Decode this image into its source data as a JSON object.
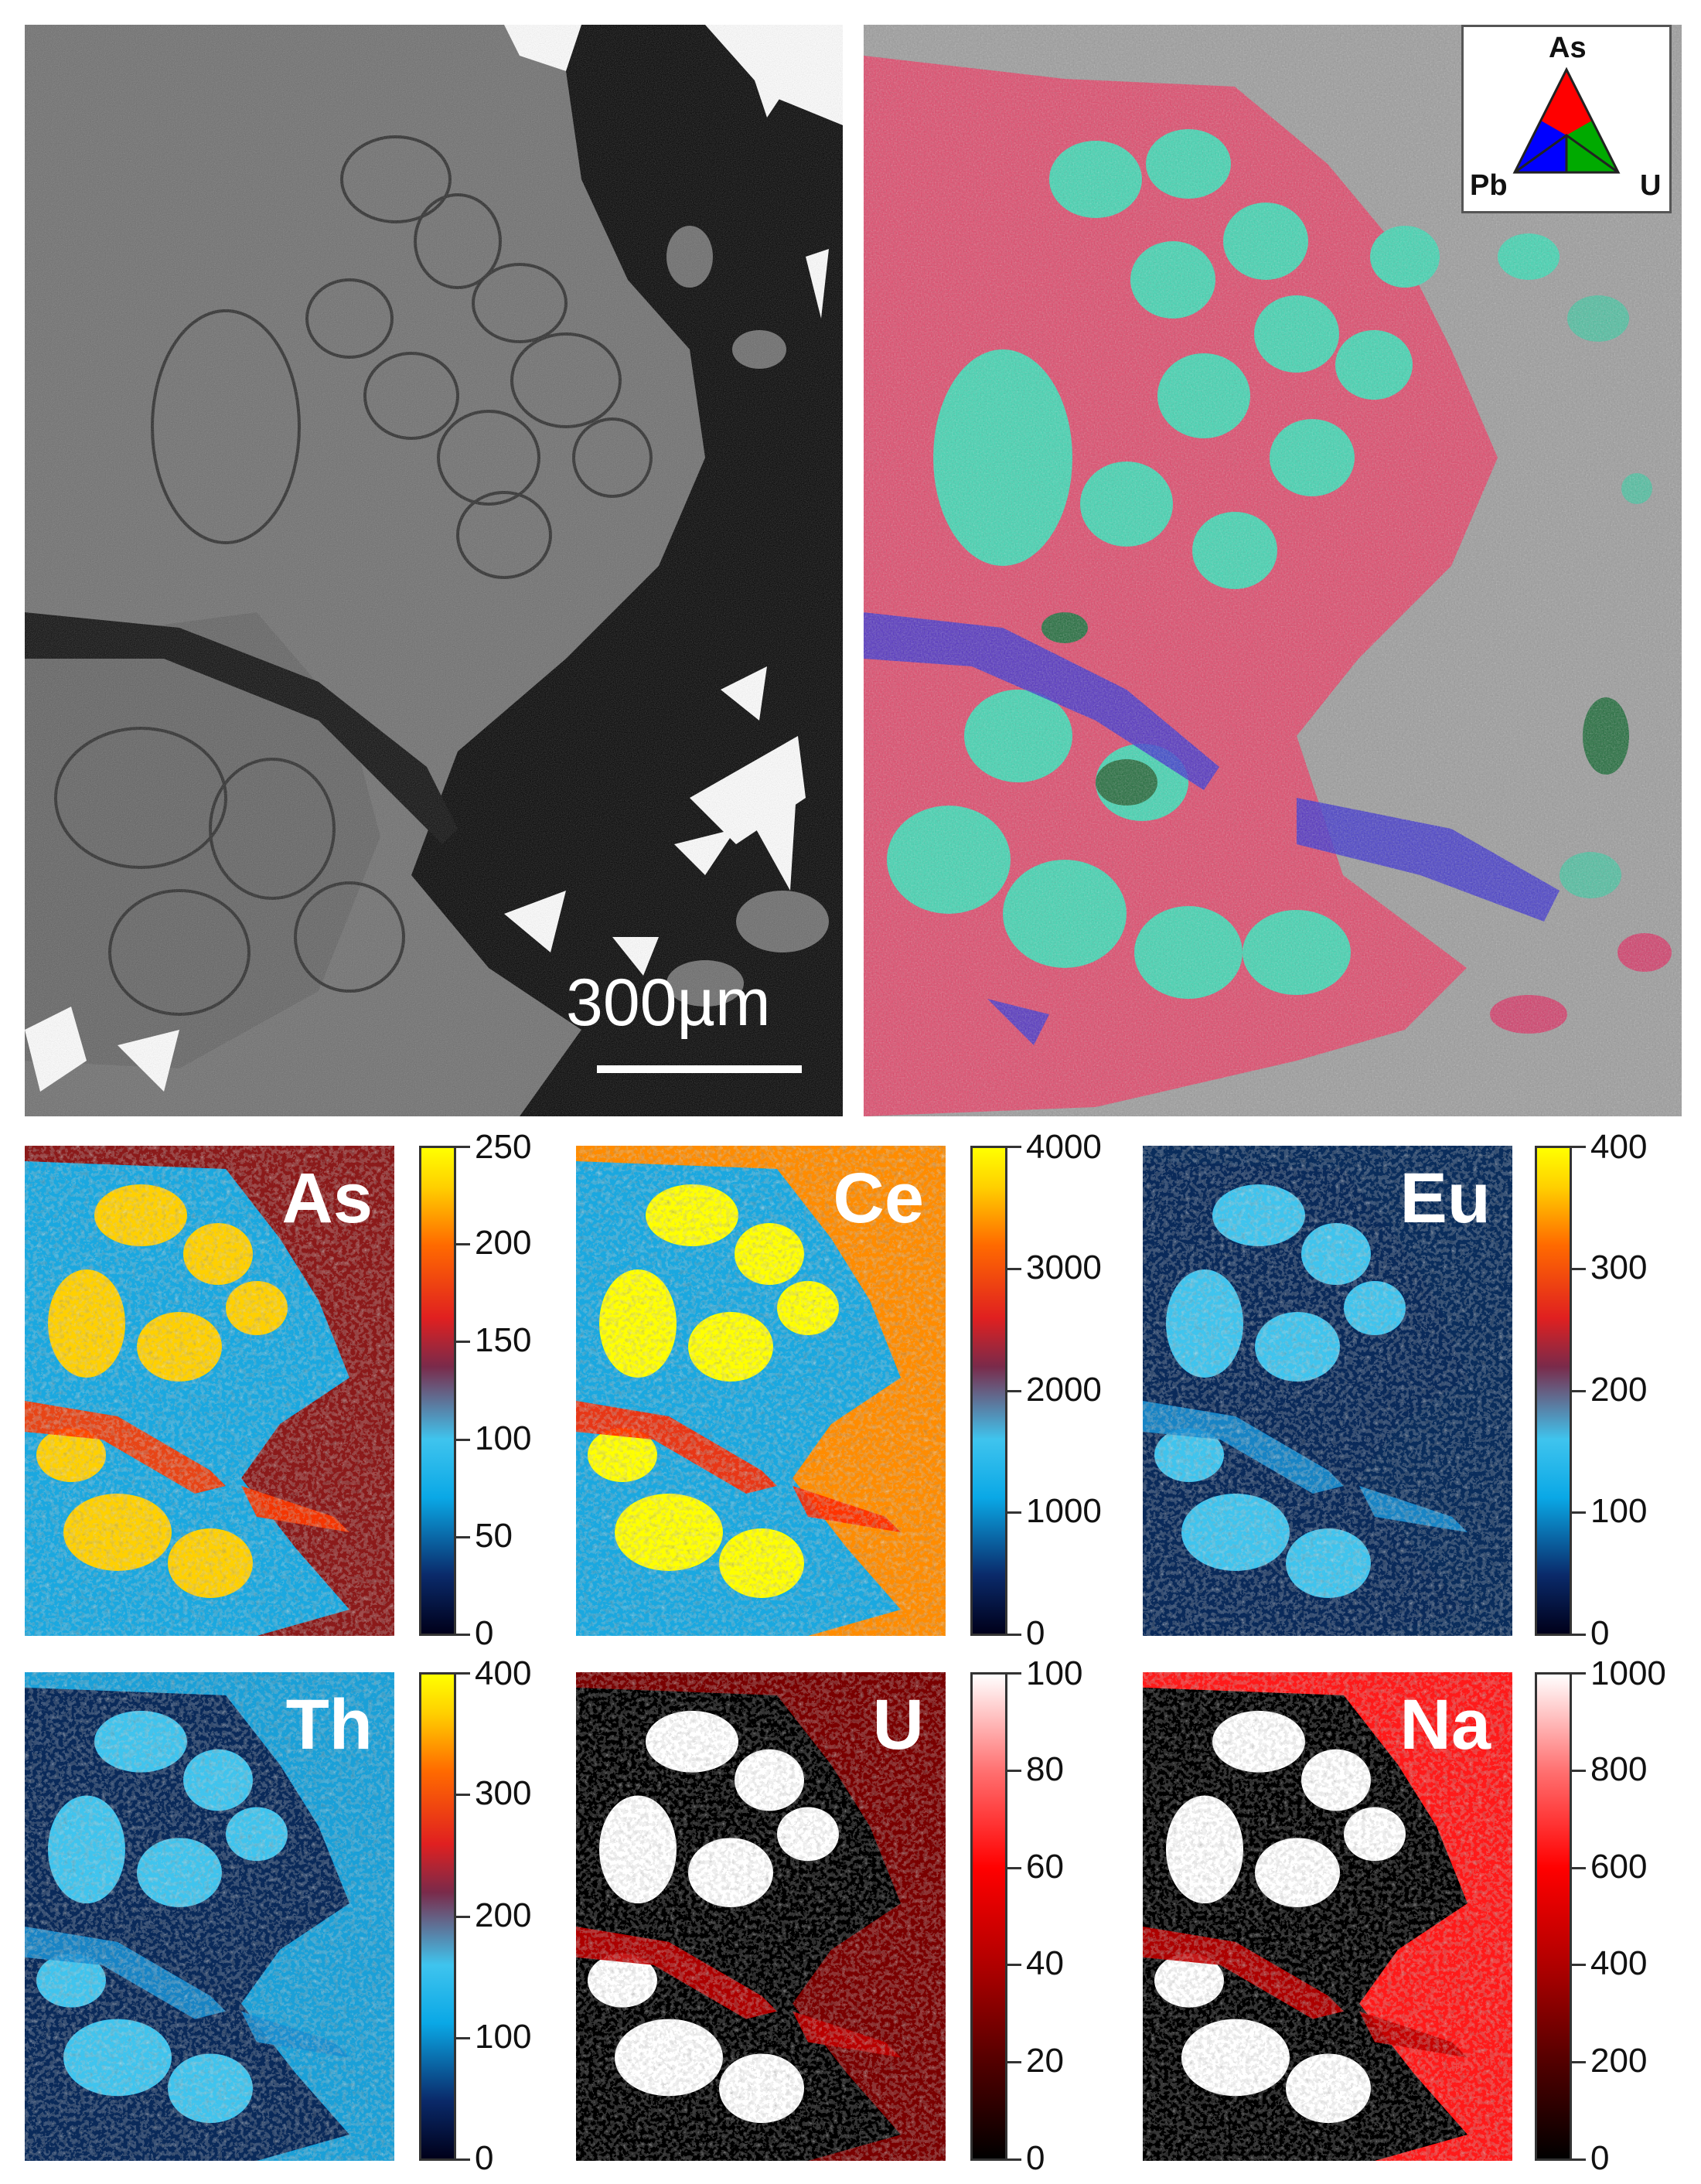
{
  "top_left": {
    "scale_bar_label": "300µm"
  },
  "top_right": {
    "ternary_legend": {
      "top": "As",
      "left": "Pb",
      "right": "U",
      "colors": {
        "As": "#ff0000",
        "Pb": "#0000ff",
        "U": "#00aa00"
      }
    }
  },
  "maps": [
    {
      "element": "As",
      "ticks": [
        "250",
        "200",
        "150",
        "100",
        "50",
        "0"
      ],
      "colormap": "jet",
      "background": "#8b1a1a"
    },
    {
      "element": "Ce",
      "ticks": [
        "4000",
        "3000",
        "2000",
        "1000",
        "0"
      ],
      "colormap": "jet",
      "background": "#ff8c00"
    },
    {
      "element": "Eu",
      "ticks": [
        "400",
        "300",
        "200",
        "100",
        "0"
      ],
      "colormap": "jet",
      "background": "#0a2d5c"
    },
    {
      "element": "Th",
      "ticks": [
        "400",
        "300",
        "200",
        "100",
        "0"
      ],
      "colormap": "jet",
      "background": "#1aa0d8"
    },
    {
      "element": "U",
      "ticks": [
        "100",
        "80",
        "60",
        "40",
        "20",
        "0"
      ],
      "colormap": "red",
      "background": "#7a0000"
    },
    {
      "element": "Na",
      "ticks": [
        "1000",
        "800",
        "600",
        "400",
        "200",
        "0"
      ],
      "colormap": "red",
      "background": "#ff1a1a"
    }
  ]
}
